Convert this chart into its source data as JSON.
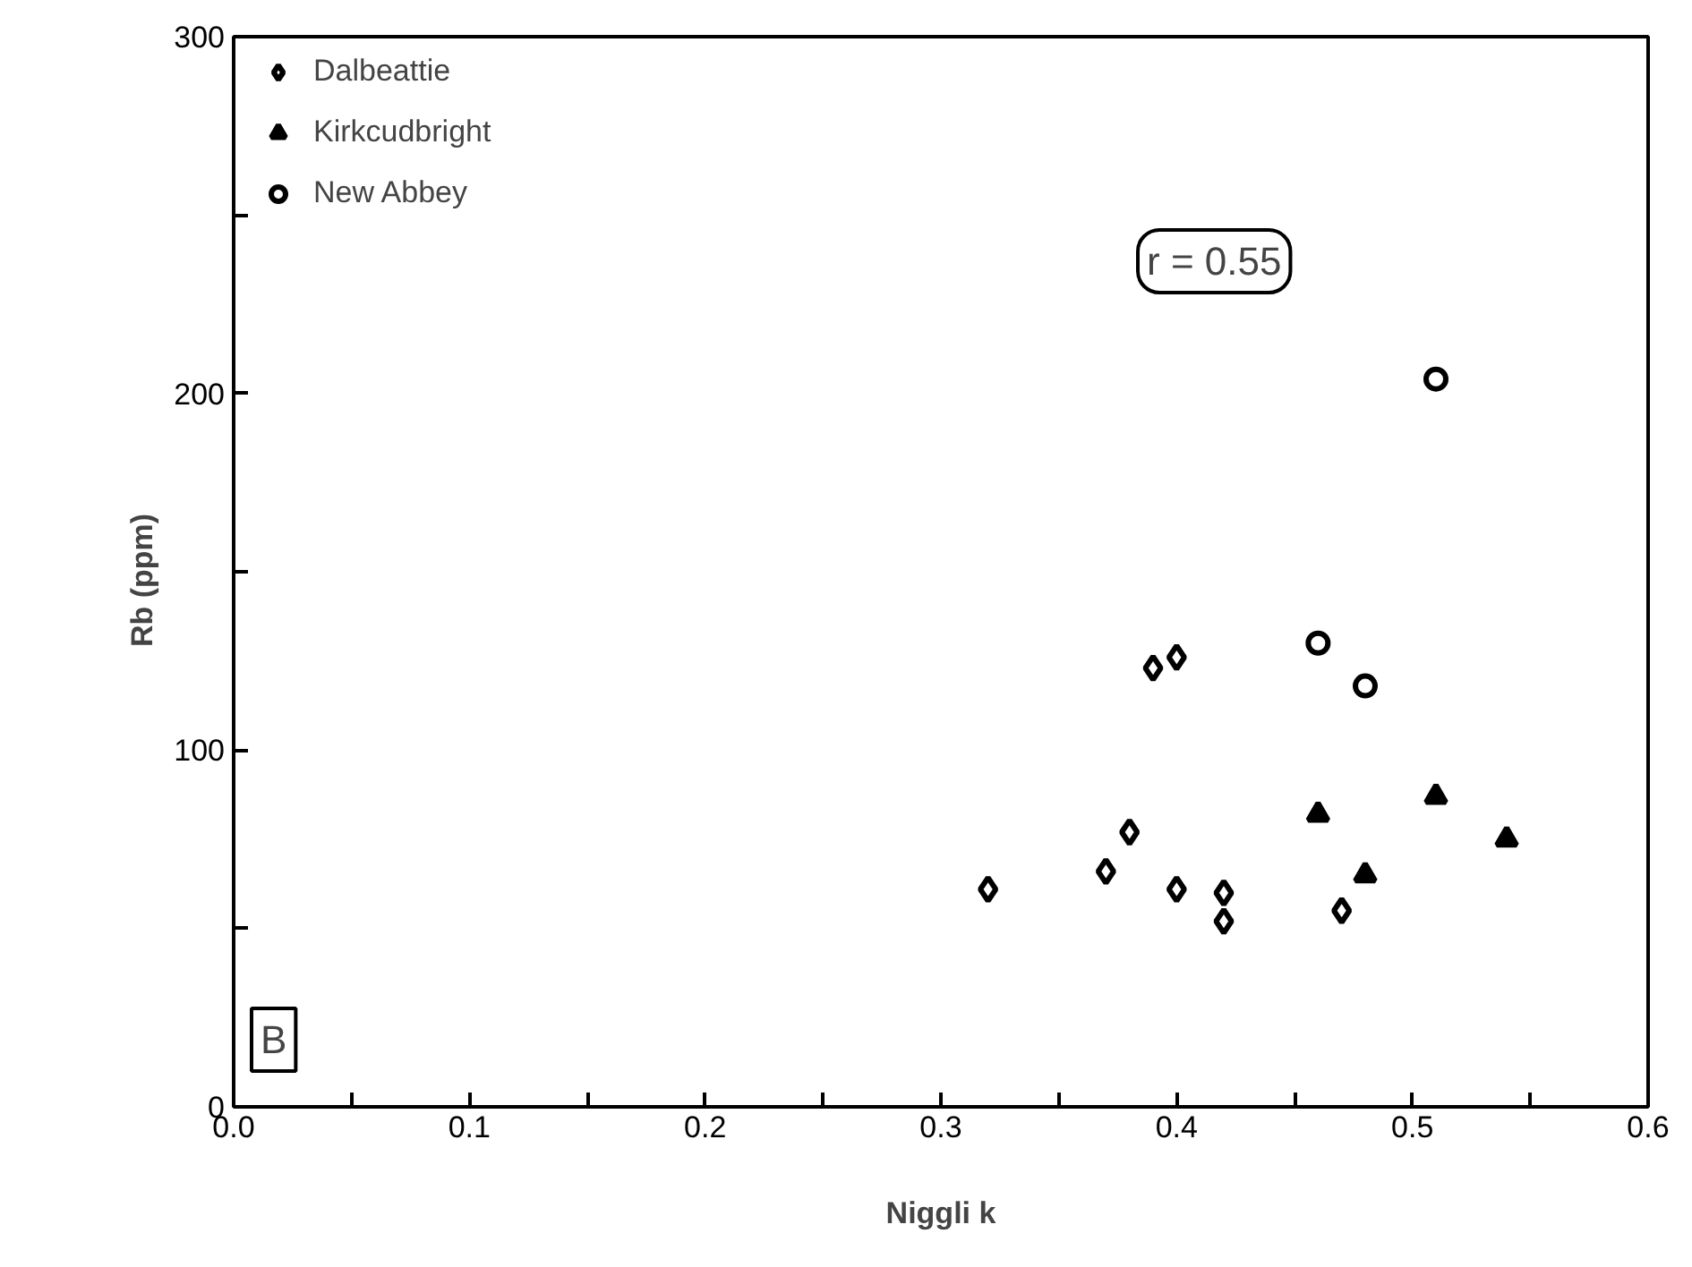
{
  "chart_data": {
    "type": "scatter",
    "xlabel": "Niggli k",
    "ylabel": "Rb   (ppm)",
    "xlim": [
      0,
      0.6
    ],
    "ylim": [
      0,
      300
    ],
    "xticks": [
      {
        "value": 0,
        "label": "0.0"
      },
      {
        "value": 0.05,
        "label": null
      },
      {
        "value": 0.1,
        "label": "0.1"
      },
      {
        "value": 0.15,
        "label": null
      },
      {
        "value": 0.2,
        "label": "0.2"
      },
      {
        "value": 0.25,
        "label": null
      },
      {
        "value": 0.3,
        "label": "0.3"
      },
      {
        "value": 0.35,
        "label": null
      },
      {
        "value": 0.4,
        "label": "0.4"
      },
      {
        "value": 0.45,
        "label": null
      },
      {
        "value": 0.5,
        "label": "0.5"
      },
      {
        "value": 0.55,
        "label": null
      },
      {
        "value": 0.6,
        "label": "0.6"
      }
    ],
    "yticks": [
      0,
      {
        "value": 50,
        "label": null
      },
      100,
      {
        "value": 150,
        "label": null
      },
      200,
      {
        "value": 250,
        "label": null
      },
      300
    ],
    "grid": false,
    "legend": "top left",
    "annotations": [
      "r = 0.55",
      "B"
    ],
    "series": [
      {
        "name": "Dalbeattie",
        "color": "#000000",
        "marker": "diamond",
        "x": [
          0.32,
          0.37,
          0.38,
          0.39,
          0.4,
          0.4,
          0.42,
          0.42,
          0.47
        ],
        "values": [
          61,
          66,
          77,
          123,
          126,
          61,
          60,
          52,
          55
        ]
      },
      {
        "name": "Kirkcudbright",
        "color": "#000000",
        "marker": "triangle",
        "x": [
          0.46,
          0.48,
          0.51,
          0.54
        ],
        "values": [
          82,
          65,
          87,
          75
        ]
      },
      {
        "name": "New Abbey",
        "color": "#000000",
        "marker": "circle",
        "x": [
          0.51,
          0.46,
          0.48
        ],
        "values": [
          204,
          130,
          118
        ]
      }
    ]
  }
}
